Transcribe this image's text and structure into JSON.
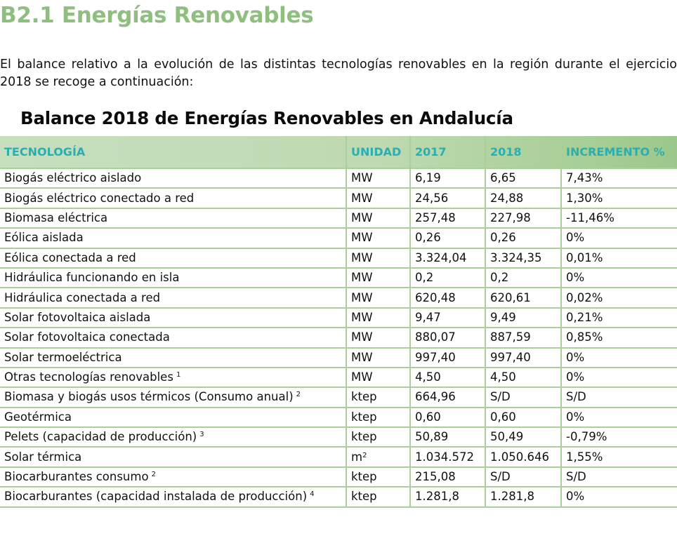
{
  "section_title": "B2.1 Energías Renovables",
  "intro_text": "El balance relativo a la evolución de las distintas tecnologías renovables en la región durante el ejercicio 2018 se recoge a continuación:",
  "table": {
    "title": "Balance 2018 de Energías Renovables en Andalucía",
    "header_color": "#2aaeb2",
    "border_color": "#a9d09b",
    "columns": [
      "TECNOLOGÍA",
      "UNIDAD",
      "2017",
      "2018",
      "INCREMENTO %"
    ],
    "rows": [
      {
        "tecnologia": "Biogás eléctrico aislado",
        "note": "",
        "unidad": "MW",
        "unidad_sup": "",
        "y2017": "6,19",
        "y2018": "6,65",
        "incremento": "7,43%"
      },
      {
        "tecnologia": "Biogás eléctrico conectado a red",
        "note": "",
        "unidad": "MW",
        "unidad_sup": "",
        "y2017": "24,56",
        "y2018": "24,88",
        "incremento": "1,30%"
      },
      {
        "tecnologia": "Biomasa eléctrica",
        "note": "",
        "unidad": "MW",
        "unidad_sup": "",
        "y2017": "257,48",
        "y2018": "227,98",
        "incremento": "-11,46%"
      },
      {
        "tecnologia": "Eólica aislada",
        "note": "",
        "unidad": "MW",
        "unidad_sup": "",
        "y2017": "0,26",
        "y2018": "0,26",
        "incremento": "0%"
      },
      {
        "tecnologia": "Eólica conectada a red",
        "note": "",
        "unidad": "MW",
        "unidad_sup": "",
        "y2017": "3.324,04",
        "y2018": "3.324,35",
        "incremento": "0,01%"
      },
      {
        "tecnologia": "Hidráulica funcionando en isla",
        "note": "",
        "unidad": "MW",
        "unidad_sup": "",
        "y2017": "0,2",
        "y2018": "0,2",
        "incremento": "0%"
      },
      {
        "tecnologia": "Hidráulica conectada a red",
        "note": "",
        "unidad": "MW",
        "unidad_sup": "",
        "y2017": "620,48",
        "y2018": "620,61",
        "incremento": "0,02%"
      },
      {
        "tecnologia": "Solar fotovoltaica aislada",
        "note": "",
        "unidad": "MW",
        "unidad_sup": "",
        "y2017": "9,47",
        "y2018": "9,49",
        "incremento": "0,21%"
      },
      {
        "tecnologia": "Solar fotovoltaica conectada",
        "note": "",
        "unidad": "MW",
        "unidad_sup": "",
        "y2017": "880,07",
        "y2018": "887,59",
        "incremento": "0,85%"
      },
      {
        "tecnologia": "Solar termoeléctrica",
        "note": "",
        "unidad": "MW",
        "unidad_sup": "",
        "y2017": "997,40",
        "y2018": "997,40",
        "incremento": "0%"
      },
      {
        "tecnologia": "Otras tecnologías renovables",
        "note": "1",
        "unidad": "MW",
        "unidad_sup": "",
        "y2017": "4,50",
        "y2018": "4,50",
        "incremento": "0%"
      },
      {
        "tecnologia": "Biomasa y biogás usos térmicos (Consumo anual)",
        "note": "2",
        "unidad": "ktep",
        "unidad_sup": "",
        "y2017": "664,96",
        "y2018": "S/D",
        "incremento": "S/D"
      },
      {
        "tecnologia": "Geotérmica",
        "note": "",
        "unidad": "ktep",
        "unidad_sup": "",
        "y2017": "0,60",
        "y2018": "0,60",
        "incremento": "0%"
      },
      {
        "tecnologia": "Pelets (capacidad de producción)",
        "note": "3",
        "unidad": "ktep",
        "unidad_sup": "",
        "y2017": "50,89",
        "y2018": "50,49",
        "incremento": "-0,79%"
      },
      {
        "tecnologia": "Solar térmica",
        "note": "",
        "unidad": "m",
        "unidad_sup": "2",
        "y2017": "1.034.572",
        "y2018": "1.050.646",
        "incremento": "1,55%"
      },
      {
        "tecnologia": "Biocarburantes consumo",
        "note": "2",
        "unidad": "ktep",
        "unidad_sup": "",
        "y2017": "215,08",
        "y2018": "S/D",
        "incremento": "S/D"
      },
      {
        "tecnologia": "Biocarburantes (capacidad instalada de producción)",
        "note": "4",
        "unidad": "ktep",
        "unidad_sup": "",
        "y2017": "1.281,8",
        "y2018": "1.281,8",
        "incremento": "0%"
      }
    ]
  }
}
